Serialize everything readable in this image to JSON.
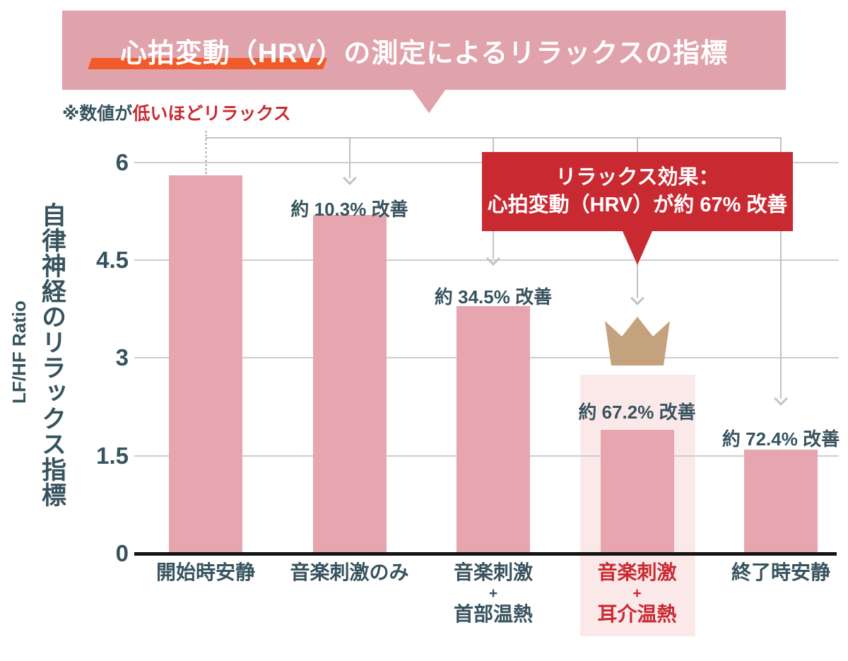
{
  "banner": {
    "title": "心拍変動（HRV）の測定によるリラックスの指標"
  },
  "note": {
    "prefix": "※数値が",
    "emphasis": "低いほどリラックス"
  },
  "callout": {
    "line1": "リラックス効果：",
    "line2": "心拍変動（HRV）が約 67% 改善"
  },
  "y_axis": {
    "title_ja": "自律神経のリラックス指標",
    "title_en": "LF/HF Ratio"
  },
  "chart_data": {
    "type": "bar",
    "title": "心拍変動（HRV）の測定によるリラックスの指標",
    "subtitle_note": "※数値が低いほどリラックス",
    "categories": [
      [
        "開始時安静"
      ],
      [
        "音楽刺激のみ"
      ],
      [
        "音楽刺激",
        "+",
        "首部温熱"
      ],
      [
        "音楽刺激",
        "+",
        "耳介温熱"
      ],
      [
        "終了時安静"
      ]
    ],
    "values": [
      5.8,
      5.2,
      3.8,
      1.9,
      1.6
    ],
    "annotations": [
      "",
      "約 10.3% 改善",
      "約 34.5% 改善",
      "約 67.2% 改善",
      "約 72.4% 改善"
    ],
    "highlighted_index": 3,
    "xlabel": "",
    "ylabel": "自律神経のリラックス指標（LF/HF Ratio）",
    "yticks": [
      0,
      1.5,
      3,
      4.5,
      6
    ],
    "ylim": [
      0,
      6.4
    ],
    "grid": true,
    "legend": false
  },
  "colors": {
    "banner_bg": "#e0a2ab",
    "bar": "#e6a5af",
    "accent_red": "#c92a31",
    "accent_orange": "#f15a29",
    "text_teal": "#37535e",
    "highlight_band": "#fbe9e9",
    "crown_gold": "#c3a27d",
    "gridline": "#cdcdcd",
    "arrow": "#c2c2c2",
    "baseline": "#141414"
  }
}
